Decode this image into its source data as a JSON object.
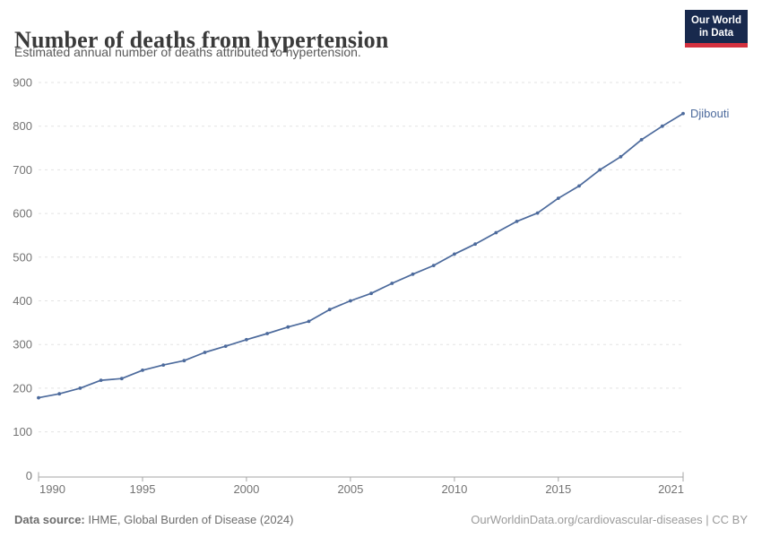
{
  "header": {
    "title": "Number of deaths from hypertension",
    "subtitle": "Estimated annual number of deaths attributed to hypertension.",
    "logo": {
      "line1": "Our World",
      "line2": "in Data"
    }
  },
  "chart_data": {
    "type": "line",
    "title": "Number of deaths from hypertension",
    "subtitle": "Estimated annual number of deaths attributed to hypertension.",
    "entity": "Djibouti",
    "line_color": "#4c6a9c",
    "grid": "horizontal-dashed",
    "legend_position": "end-of-line",
    "xlim": [
      1990,
      2021
    ],
    "ylim": [
      0,
      900
    ],
    "x_ticks": [
      1990,
      1995,
      2000,
      2005,
      2010,
      2015,
      2021
    ],
    "y_ticks": [
      0,
      100,
      200,
      300,
      400,
      500,
      600,
      700,
      800,
      900
    ],
    "x": [
      1990,
      1991,
      1992,
      1993,
      1994,
      1995,
      1996,
      1997,
      1998,
      1999,
      2000,
      2001,
      2002,
      2003,
      2004,
      2005,
      2006,
      2007,
      2008,
      2009,
      2010,
      2011,
      2012,
      2013,
      2014,
      2015,
      2016,
      2017,
      2018,
      2019,
      2020,
      2021
    ],
    "values": [
      178,
      187,
      200,
      218,
      222,
      241,
      253,
      263,
      282,
      296,
      311,
      325,
      340,
      353,
      380,
      400,
      417,
      440,
      461,
      481,
      507,
      530,
      556,
      582,
      601,
      635,
      663,
      700,
      730,
      769,
      800,
      829
    ]
  },
  "footer": {
    "source_label": "Data source:",
    "source_text": " IHME, Global Burden of Disease (2024)",
    "right_text": "OurWorldinData.org/cardiovascular-diseases | CC BY"
  },
  "colors": {
    "line": "#4c6a9c",
    "grid": "#e3e3e3",
    "axis": "#a5a5a5",
    "tick_text": "#737373",
    "logo_bg": "#18294d",
    "logo_red": "#d4313f"
  }
}
